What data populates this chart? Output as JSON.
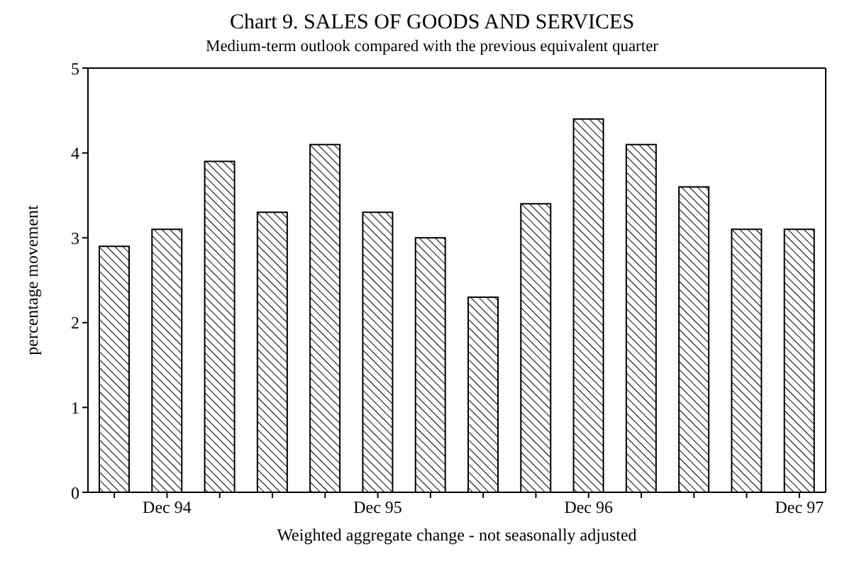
{
  "chart_data": {
    "type": "bar",
    "title": "Chart 9. SALES OF GOODS AND SERVICES",
    "subtitle": "Medium-term outlook compared with the previous equivalent quarter",
    "xlabel": "Weighted aggregate change - not seasonally adjusted",
    "ylabel": "percentage movement",
    "categories": [
      null,
      "Dec 94",
      null,
      null,
      null,
      "Dec 95",
      null,
      null,
      null,
      "Dec 96",
      null,
      null,
      null,
      "Dec 97"
    ],
    "values": [
      2.9,
      3.1,
      3.9,
      3.3,
      4.1,
      3.3,
      3.0,
      2.3,
      3.4,
      4.4,
      4.1,
      3.6,
      3.1,
      3.1
    ],
    "color": "#000000",
    "ylim": [
      0,
      5
    ],
    "yticks": [
      0,
      1,
      2,
      3,
      4,
      5
    ],
    "grid": false,
    "legend": false
  }
}
